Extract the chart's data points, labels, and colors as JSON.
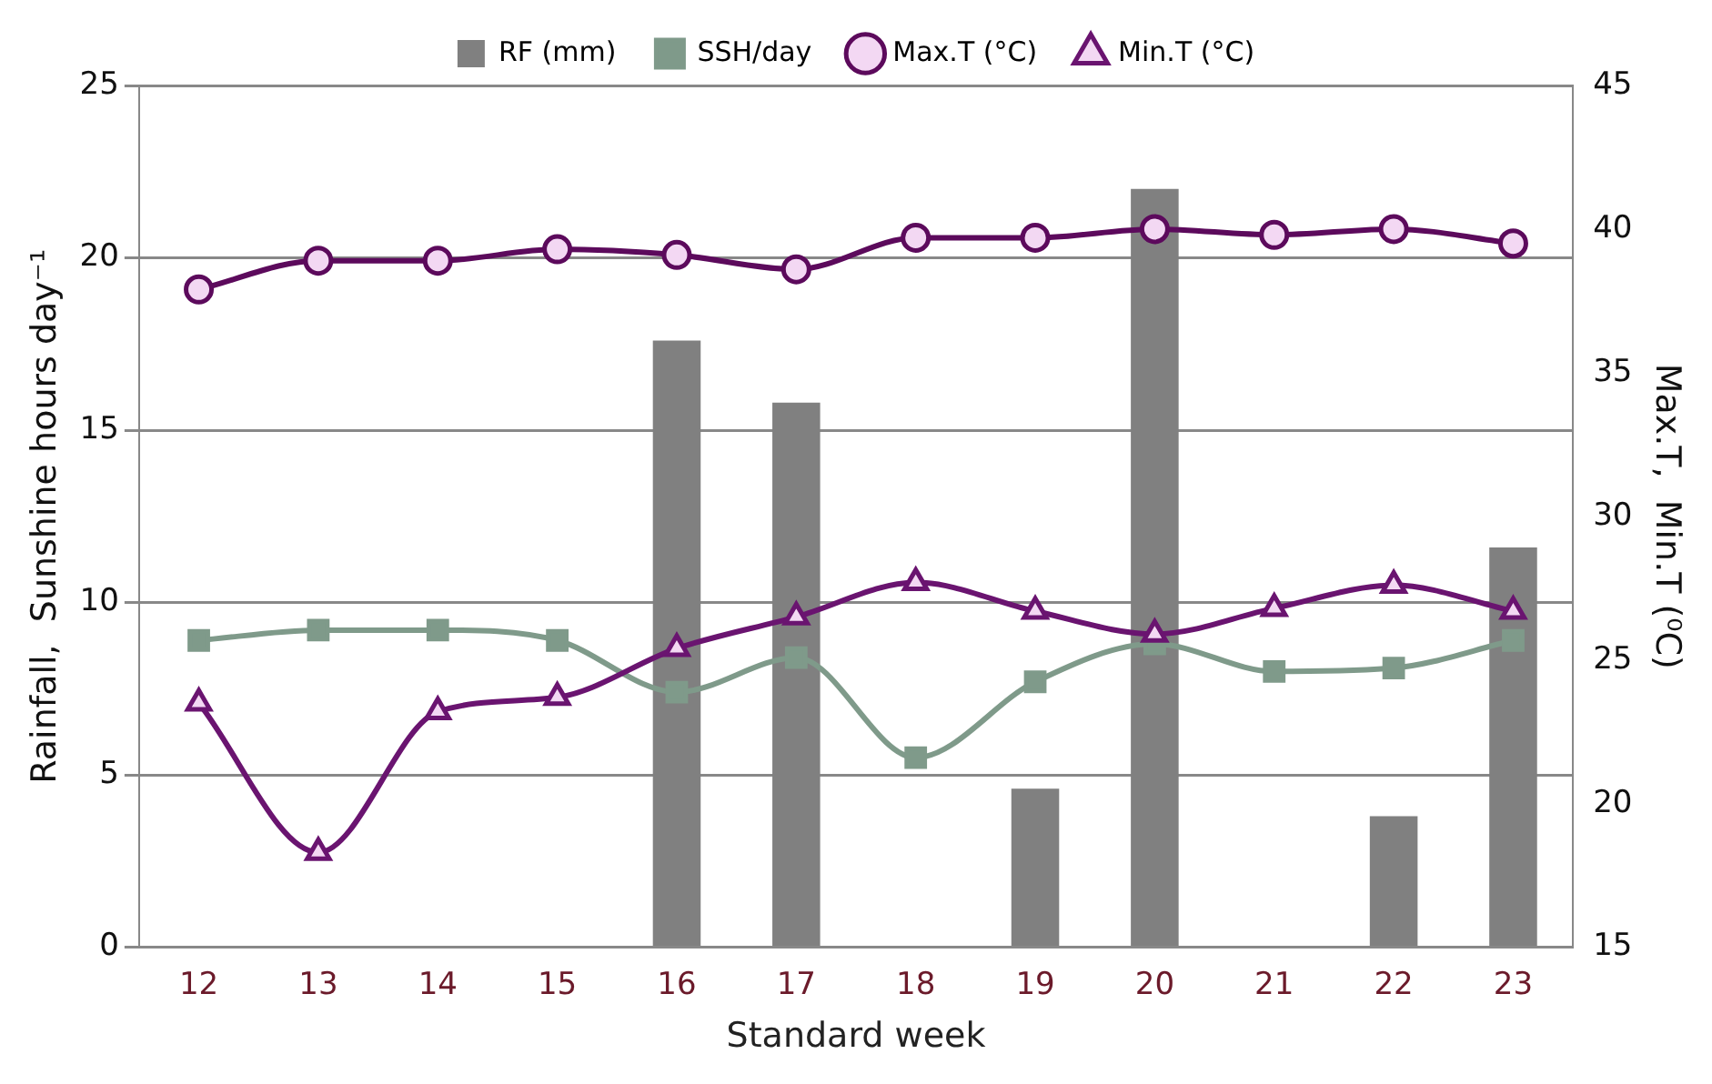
{
  "chart_data": {
    "type": "bar",
    "xlabel": "Standard week",
    "ylabel": "Rainfall,  Sunshine hours day⁻¹",
    "y2label": "Max.T,  Min.T (⁰C)",
    "categories": [
      "12",
      "13",
      "14",
      "15",
      "16",
      "17",
      "18",
      "19",
      "20",
      "21",
      "22",
      "23"
    ],
    "series": [
      {
        "name": "RF (mm)",
        "color": "#808080",
        "values": [
          0,
          0,
          0,
          0,
          17.6,
          15.8,
          0,
          4.6,
          22.0,
          0,
          3.8,
          11.6
        ]
      },
      {
        "name": "SSH/day",
        "type": "line",
        "color": "#7f9a8a",
        "marker": "square",
        "values": [
          8.9,
          9.2,
          9.2,
          8.9,
          7.4,
          8.4,
          5.5,
          7.7,
          8.8,
          8.0,
          8.1,
          8.9
        ]
      },
      {
        "name": "Max.T (°C)",
        "type": "line",
        "axis": "y2",
        "color": "#5c0a5c",
        "marker": "circle",
        "values": [
          37.9,
          38.9,
          38.9,
          39.3,
          39.1,
          38.6,
          39.7,
          39.7,
          40.0,
          39.8,
          40.0,
          39.5
        ]
      },
      {
        "name": "Min.T (°C)",
        "type": "line",
        "axis": "y2",
        "color": "#6a1470",
        "marker": "triangle",
        "values": [
          23.5,
          18.3,
          23.2,
          23.7,
          25.4,
          26.5,
          27.7,
          26.7,
          25.9,
          26.8,
          27.6,
          26.7
        ]
      }
    ],
    "ylim": [
      0,
      25
    ],
    "yticks": [
      0,
      5,
      10,
      15,
      20,
      25
    ],
    "y2lim": [
      15,
      45
    ],
    "y2ticks": [
      15,
      20,
      25,
      30,
      35,
      40,
      45
    ],
    "grid": "y",
    "legend": "top"
  }
}
